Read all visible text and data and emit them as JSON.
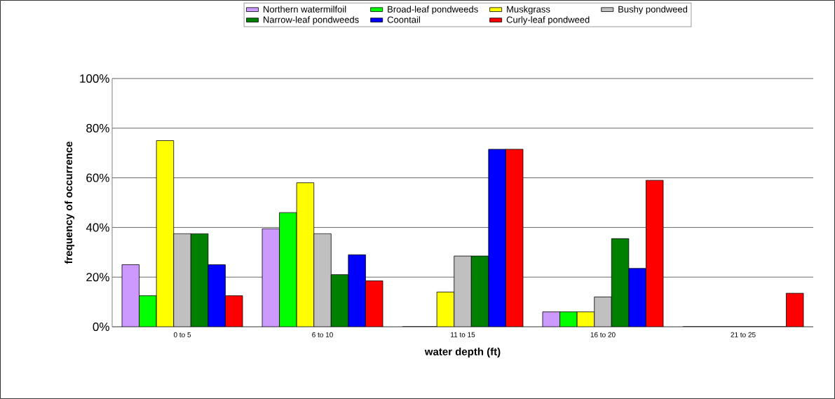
{
  "chart_data": {
    "type": "bar",
    "xlabel": "water depth (ft)",
    "ylabel": "frequency of occurrence",
    "categories": [
      "0 to 5",
      "6 to 10",
      "11 to 15",
      "16 to 20",
      "21 to 25"
    ],
    "series": [
      {
        "name": "Northern watermilfoil",
        "color": "#cc99ff",
        "values": [
          25,
          39.5,
          0,
          6,
          0
        ]
      },
      {
        "name": "Broad-leaf pondweeds",
        "color": "#00ff00",
        "values": [
          12.5,
          46,
          0,
          6,
          0
        ]
      },
      {
        "name": "Muskgrass",
        "color": "#ffff00",
        "values": [
          75,
          58,
          14,
          6,
          0
        ]
      },
      {
        "name": "Bushy pondweed",
        "color": "#c0c0c0",
        "values": [
          37.5,
          37.5,
          28.5,
          12,
          0
        ]
      },
      {
        "name": "Narrow-leaf pondweeds",
        "color": "#008000",
        "values": [
          37.5,
          21,
          28.5,
          35.5,
          0
        ]
      },
      {
        "name": "Coontail",
        "color": "#0000ff",
        "values": [
          25,
          29,
          71.5,
          23.5,
          0
        ]
      },
      {
        "name": "Curly-leaf pondweed",
        "color": "#ff0000",
        "values": [
          12.5,
          18.5,
          71.5,
          59,
          13.5
        ]
      }
    ],
    "ylim": [
      0,
      100
    ],
    "yticks": [
      {
        "value": 0,
        "label": "0%"
      },
      {
        "value": 20,
        "label": "20%"
      },
      {
        "value": 40,
        "label": "40%"
      },
      {
        "value": 60,
        "label": "60%"
      },
      {
        "value": 80,
        "label": "80%"
      },
      {
        "value": 100,
        "label": "100%"
      }
    ],
    "grid": "y",
    "legend": "top"
  }
}
